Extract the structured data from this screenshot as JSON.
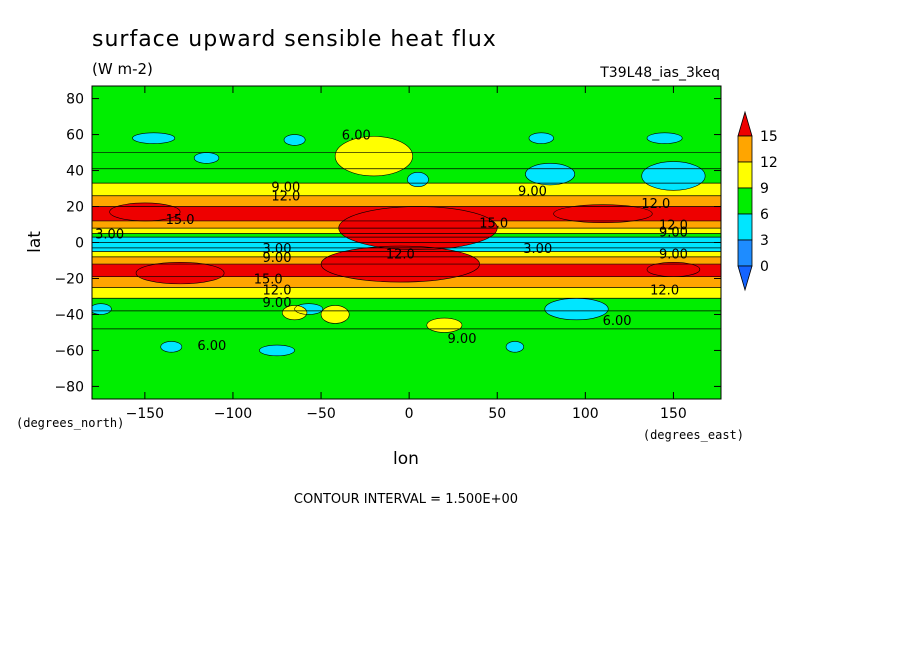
{
  "chart_data": {
    "type": "heatmap",
    "title": "surface upward sensible heat flux",
    "units": "(W m-2)",
    "run_label": "T39L48_ias_3keq",
    "xlabel": "lon",
    "ylabel": "lat",
    "x_units": "(degrees_east)",
    "y_units": "(degrees_north)",
    "xlim": [
      -180,
      177
    ],
    "ylim": [
      -87,
      87
    ],
    "x_ticks": [
      -150,
      -100,
      -50,
      0,
      50,
      100,
      150
    ],
    "y_ticks": [
      -80,
      -60,
      -40,
      -20,
      0,
      20,
      40,
      60,
      80
    ],
    "contour_interval_text": "CONTOUR INTERVAL = 1.500E+00",
    "colorbar": {
      "levels": [
        0,
        3,
        6,
        9,
        12,
        15
      ],
      "colors": [
        "#1e8cff",
        "#00e6ff",
        "#00ee00",
        "#ffff00",
        "#ffa500",
        "#ee0000"
      ],
      "under_color": "#1464ff",
      "over_color": "#ee0000"
    },
    "lat_profile": [
      {
        "lat": -87,
        "value": 7
      },
      {
        "lat": -48,
        "value": 7
      },
      {
        "lat": -38,
        "value": 8
      },
      {
        "lat": -31,
        "value": 9.5
      },
      {
        "lat": -25,
        "value": 12.5
      },
      {
        "lat": -19,
        "value": 16
      },
      {
        "lat": -12,
        "value": 16
      },
      {
        "lat": -8,
        "value": 13
      },
      {
        "lat": -5,
        "value": 7
      },
      {
        "lat": -3,
        "value": 4
      },
      {
        "lat": 0,
        "value": 2
      },
      {
        "lat": 3,
        "value": 4
      },
      {
        "lat": 5,
        "value": 8
      },
      {
        "lat": 8,
        "value": 13
      },
      {
        "lat": 12,
        "value": 16
      },
      {
        "lat": 20,
        "value": 16
      },
      {
        "lat": 26,
        "value": 12.5
      },
      {
        "lat": 33,
        "value": 9.5
      },
      {
        "lat": 41,
        "value": 8
      },
      {
        "lat": 50,
        "value": 7
      },
      {
        "lat": 87,
        "value": 7
      }
    ],
    "anomalies": [
      {
        "lon": 80,
        "lat": 38,
        "rx": 14,
        "ry": 6,
        "value": 3.5
      },
      {
        "lon": 150,
        "lat": 37,
        "rx": 18,
        "ry": 8,
        "value": 3.5
      },
      {
        "lon": 95,
        "lat": -37,
        "rx": 18,
        "ry": 6,
        "value": 3.5
      },
      {
        "lon": -57,
        "lat": -37,
        "rx": 8,
        "ry": 3,
        "value": 4.5
      },
      {
        "lon": -175,
        "lat": -37,
        "rx": 6,
        "ry": 3,
        "value": 4.5
      },
      {
        "lon": 5,
        "lat": 35,
        "rx": 6,
        "ry": 4,
        "value": 4.5
      },
      {
        "lon": -145,
        "lat": 58,
        "rx": 12,
        "ry": 3,
        "value": 4.5
      },
      {
        "lon": -65,
        "lat": 57,
        "rx": 6,
        "ry": 3,
        "value": 4.5
      },
      {
        "lon": 75,
        "lat": 58,
        "rx": 7,
        "ry": 3,
        "value": 4.5
      },
      {
        "lon": 145,
        "lat": 58,
        "rx": 10,
        "ry": 3,
        "value": 4.5
      },
      {
        "lon": -115,
        "lat": 47,
        "rx": 7,
        "ry": 3,
        "value": 4.5
      },
      {
        "lon": -135,
        "lat": -58,
        "rx": 6,
        "ry": 3,
        "value": 4.5
      },
      {
        "lon": -75,
        "lat": -60,
        "rx": 10,
        "ry": 3,
        "value": 4.5
      },
      {
        "lon": 60,
        "lat": -58,
        "rx": 5,
        "ry": 3,
        "value": 4.5
      },
      {
        "lon": -20,
        "lat": 48,
        "rx": 22,
        "ry": 11,
        "value": 10
      },
      {
        "lon": -42,
        "lat": -40,
        "rx": 8,
        "ry": 5,
        "value": 10
      },
      {
        "lon": -65,
        "lat": -39,
        "rx": 7,
        "ry": 4,
        "value": 10
      },
      {
        "lon": 20,
        "lat": -46,
        "rx": 10,
        "ry": 4,
        "value": 10
      },
      {
        "lon": 5,
        "lat": 8,
        "rx": 45,
        "ry": 12,
        "value": 17
      },
      {
        "lon": -5,
        "lat": -12,
        "rx": 45,
        "ry": 10,
        "value": 17
      },
      {
        "lon": -150,
        "lat": 17,
        "rx": 20,
        "ry": 5,
        "value": 16
      },
      {
        "lon": 110,
        "lat": 16,
        "rx": 28,
        "ry": 5,
        "value": 16
      },
      {
        "lon": -130,
        "lat": -17,
        "rx": 25,
        "ry": 6,
        "value": 16
      },
      {
        "lon": 150,
        "lat": -15,
        "rx": 15,
        "ry": 4,
        "value": 16
      }
    ],
    "contour_labels": [
      {
        "lon": -30,
        "lat": 60,
        "text": "6.00"
      },
      {
        "lon": -70,
        "lat": 31,
        "text": "9.00"
      },
      {
        "lon": -70,
        "lat": 26,
        "text": "12.0"
      },
      {
        "lon": 70,
        "lat": 29,
        "text": "9.00"
      },
      {
        "lon": 140,
        "lat": 22,
        "text": "12.0"
      },
      {
        "lon": -130,
        "lat": 13,
        "text": "15.0"
      },
      {
        "lon": 48,
        "lat": 11,
        "text": "15.0"
      },
      {
        "lon": 150,
        "lat": 10,
        "text": "12.0"
      },
      {
        "lon": 150,
        "lat": 6,
        "text": "9.00"
      },
      {
        "lon": -170,
        "lat": 5,
        "text": "3.00"
      },
      {
        "lon": -75,
        "lat": -3,
        "text": "3.00"
      },
      {
        "lon": 73,
        "lat": -3,
        "text": "3.00"
      },
      {
        "lon": 150,
        "lat": -6,
        "text": "9.00"
      },
      {
        "lon": -75,
        "lat": -8,
        "text": "9.00"
      },
      {
        "lon": -80,
        "lat": -20,
        "text": "15.0"
      },
      {
        "lon": -75,
        "lat": -26,
        "text": "12.0"
      },
      {
        "lon": 145,
        "lat": -26,
        "text": "12.0"
      },
      {
        "lon": -75,
        "lat": -33,
        "text": "9.00"
      },
      {
        "lon": 118,
        "lat": -43,
        "text": "6.00"
      },
      {
        "lon": 30,
        "lat": -53,
        "text": "9.00"
      },
      {
        "lon": -112,
        "lat": -57,
        "text": "6.00"
      },
      {
        "lon": -5,
        "lat": -6,
        "text": "12.0"
      }
    ]
  }
}
